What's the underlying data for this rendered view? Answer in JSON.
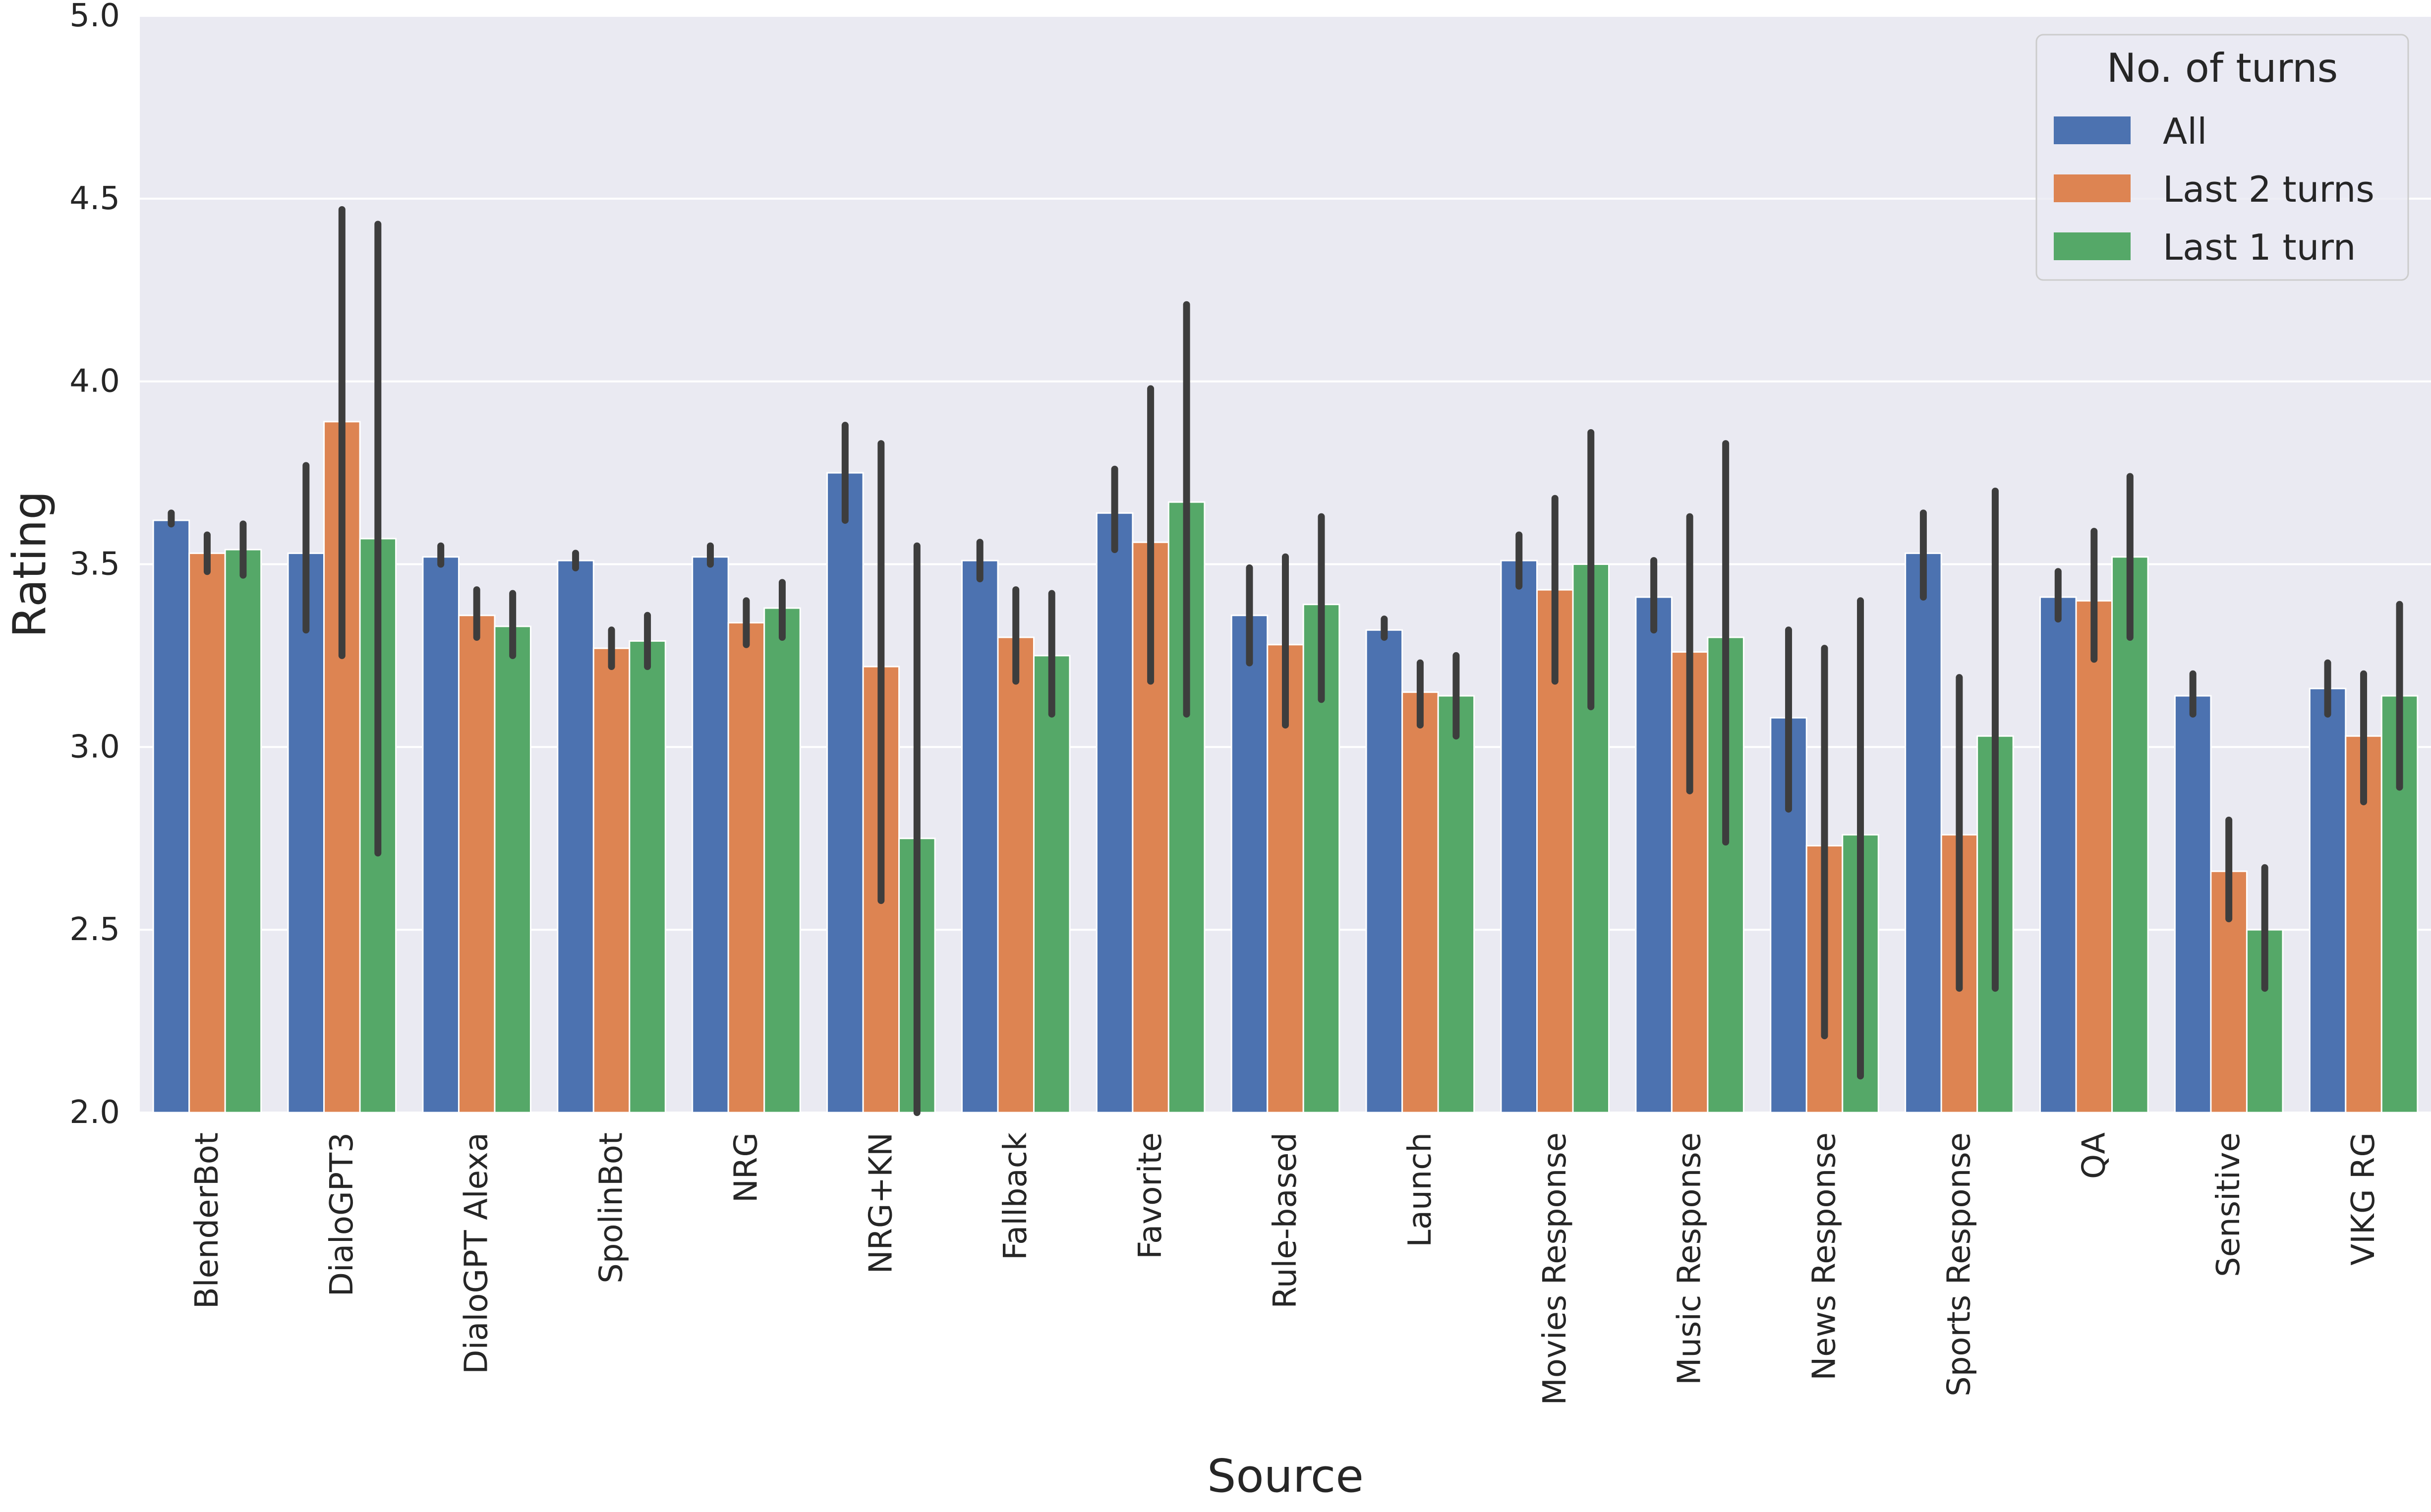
{
  "chart_data": {
    "type": "bar",
    "xlabel": "Source",
    "ylabel": "Rating",
    "ylim": [
      2.0,
      5.0
    ],
    "yticks": [
      "2.0",
      "2.5",
      "3.0",
      "3.5",
      "4.0",
      "4.5",
      "5.0"
    ],
    "grid": "horizontal",
    "legend": {
      "title": "No. of turns",
      "placement": "top-right"
    },
    "categories": [
      "BlenderBot",
      "DialoGPT3",
      "DialoGPT Alexa",
      "SpolinBot",
      "NRG",
      "NRG+KN",
      "Fallback",
      "Favorite",
      "Rule-based",
      "Launch",
      "Movies Response",
      "Music Response",
      "News Response",
      "Sports Response",
      "QA",
      "Sensitive",
      "VIKG RG"
    ],
    "series": [
      {
        "name": "All",
        "color": "#4c72b0",
        "values": [
          3.62,
          3.53,
          3.52,
          3.51,
          3.52,
          3.75,
          3.51,
          3.64,
          3.36,
          3.32,
          3.51,
          3.41,
          3.08,
          3.53,
          3.41,
          3.14,
          3.16
        ],
        "err_low": [
          3.61,
          3.32,
          3.5,
          3.49,
          3.5,
          3.62,
          3.46,
          3.54,
          3.23,
          3.3,
          3.44,
          3.32,
          2.83,
          3.41,
          3.35,
          3.09,
          3.09
        ],
        "err_high": [
          3.64,
          3.77,
          3.55,
          3.53,
          3.55,
          3.88,
          3.56,
          3.76,
          3.49,
          3.35,
          3.58,
          3.51,
          3.32,
          3.64,
          3.48,
          3.2,
          3.23
        ]
      },
      {
        "name": "Last 2 turns",
        "color": "#dd8452",
        "values": [
          3.53,
          3.89,
          3.36,
          3.27,
          3.34,
          3.22,
          3.3,
          3.56,
          3.28,
          3.15,
          3.43,
          3.26,
          2.73,
          2.76,
          3.4,
          2.66,
          3.03
        ],
        "err_low": [
          3.48,
          3.25,
          3.3,
          3.22,
          3.28,
          2.58,
          3.18,
          3.18,
          3.06,
          3.06,
          3.18,
          2.88,
          2.21,
          2.34,
          3.24,
          2.53,
          2.85
        ],
        "err_high": [
          3.58,
          4.47,
          3.43,
          3.32,
          3.4,
          3.83,
          3.43,
          3.98,
          3.52,
          3.23,
          3.68,
          3.63,
          3.27,
          3.19,
          3.59,
          2.8,
          3.2
        ]
      },
      {
        "name": "Last 1 turn",
        "color": "#55a868",
        "values": [
          3.54,
          3.57,
          3.33,
          3.29,
          3.38,
          2.75,
          3.25,
          3.67,
          3.39,
          3.14,
          3.5,
          3.3,
          2.76,
          3.03,
          3.52,
          2.5,
          3.14
        ],
        "err_low": [
          3.47,
          2.71,
          3.25,
          3.22,
          3.3,
          1.98,
          3.09,
          3.09,
          3.13,
          3.03,
          3.11,
          2.74,
          2.1,
          2.34,
          3.3,
          2.34,
          2.89
        ],
        "err_high": [
          3.61,
          4.43,
          3.42,
          3.36,
          3.45,
          3.55,
          3.42,
          4.21,
          3.63,
          3.25,
          3.86,
          3.83,
          3.4,
          3.7,
          3.74,
          2.67,
          3.39
        ]
      }
    ]
  }
}
